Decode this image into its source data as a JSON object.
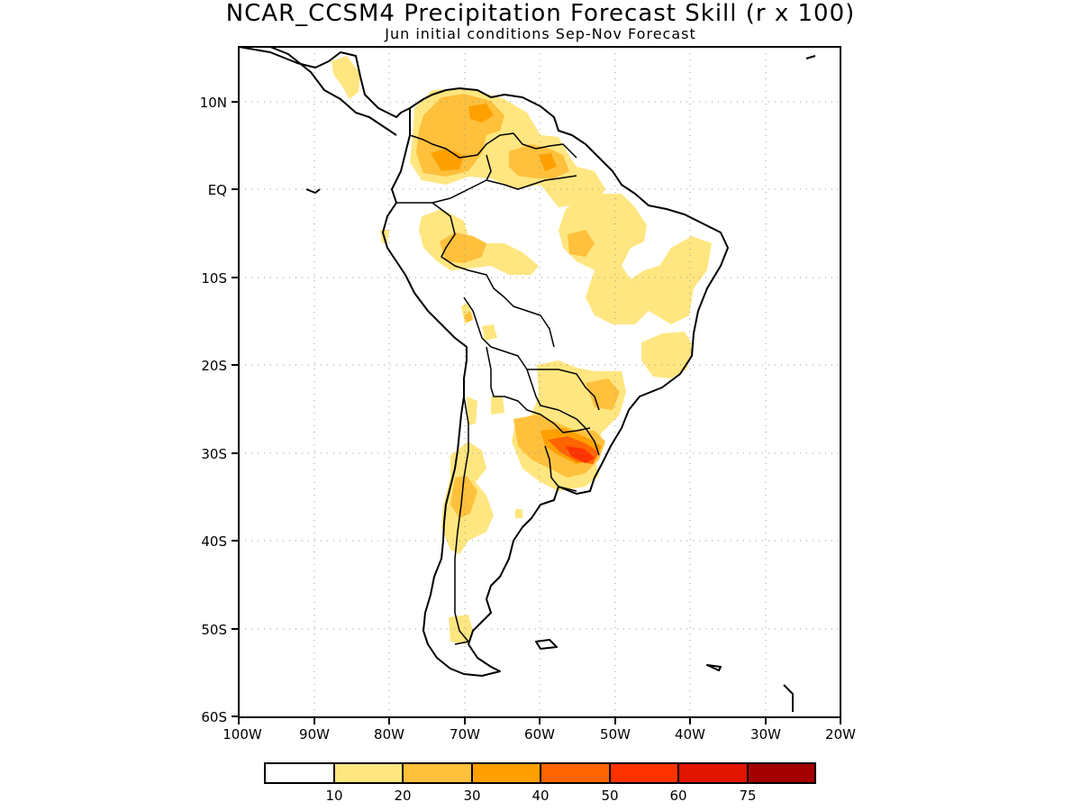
{
  "title": "NCAR_CCSM4 Precipitation Forecast Skill (r x 100)",
  "subtitle": "Jun initial conditions  Sep-Nov Forecast",
  "map": {
    "region": "South America",
    "lat_labels": [
      "10N",
      "EQ",
      "10S",
      "20S",
      "30S",
      "40S",
      "50S",
      "60S"
    ],
    "lon_labels": [
      "100W",
      "90W",
      "80W",
      "70W",
      "60W",
      "50W",
      "40W",
      "30W",
      "20W"
    ],
    "grid": "dotted"
  },
  "colorbar": {
    "tick_labels": [
      "10",
      "20",
      "30",
      "40",
      "50",
      "60",
      "75"
    ],
    "colors": [
      "#ffffff",
      "#ffe680",
      "#ffc03c",
      "#ffa000",
      "#ff6400",
      "#ff3200",
      "#e11400",
      "#a50000"
    ]
  },
  "colors": {
    "c10_20": "#ffe680",
    "c20_30": "#ffc03c",
    "c30_40": "#ffa000",
    "c40_50": "#ff6400",
    "c50_60": "#ff3200"
  }
}
